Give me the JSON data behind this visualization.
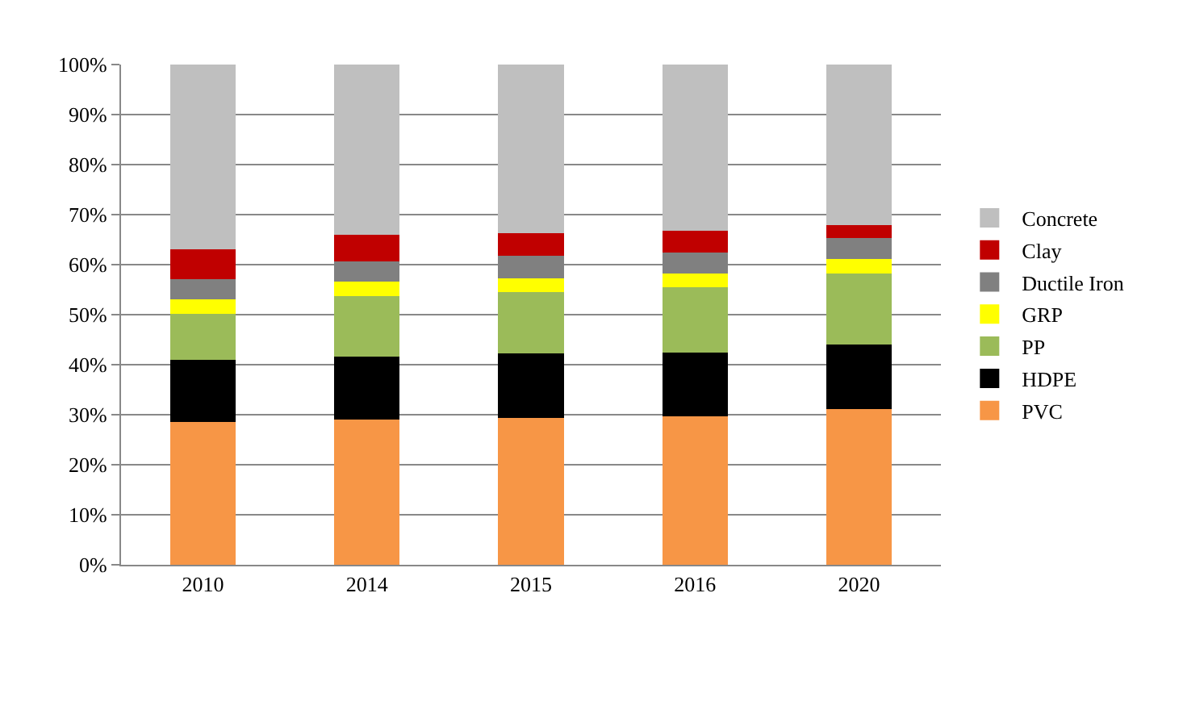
{
  "chart_data": {
    "type": "bar",
    "stacked": true,
    "categories": [
      "2010",
      "2014",
      "2015",
      "2016",
      "2020"
    ],
    "series": [
      {
        "name": "PVC",
        "color": "#f79646",
        "values": [
          28.6,
          29.0,
          29.3,
          29.6,
          31.1
        ]
      },
      {
        "name": "HDPE",
        "color": "#000000",
        "values": [
          12.4,
          12.6,
          12.9,
          12.9,
          12.9
        ]
      },
      {
        "name": "PP",
        "color": "#9bbb59",
        "values": [
          9.1,
          12.1,
          12.3,
          13.0,
          14.2
        ]
      },
      {
        "name": "GRP",
        "color": "#ffff00",
        "values": [
          2.9,
          2.9,
          2.8,
          2.8,
          2.9
        ]
      },
      {
        "name": "Ductile Iron",
        "color": "#808080",
        "values": [
          4.1,
          4.1,
          4.4,
          4.1,
          4.2
        ]
      },
      {
        "name": "Clay",
        "color": "#c00000",
        "values": [
          6.0,
          5.2,
          4.6,
          4.4,
          2.6
        ]
      },
      {
        "name": "Concrete",
        "color": "#bfbfbf",
        "values": [
          36.9,
          34.1,
          33.7,
          33.2,
          32.1
        ]
      }
    ],
    "ylim": [
      0,
      100
    ],
    "yticks": [
      {
        "value": 0,
        "label": "0%"
      },
      {
        "value": 10,
        "label": "10%"
      },
      {
        "value": 20,
        "label": "20%"
      },
      {
        "value": 30,
        "label": "30%"
      },
      {
        "value": 40,
        "label": "40%"
      },
      {
        "value": 50,
        "label": "50%"
      },
      {
        "value": 60,
        "label": "60%"
      },
      {
        "value": 70,
        "label": "70%"
      },
      {
        "value": 80,
        "label": "80%"
      },
      {
        "value": 90,
        "label": "90%"
      },
      {
        "value": 100,
        "label": "100%"
      }
    ],
    "grid": "y",
    "legend": "right"
  }
}
